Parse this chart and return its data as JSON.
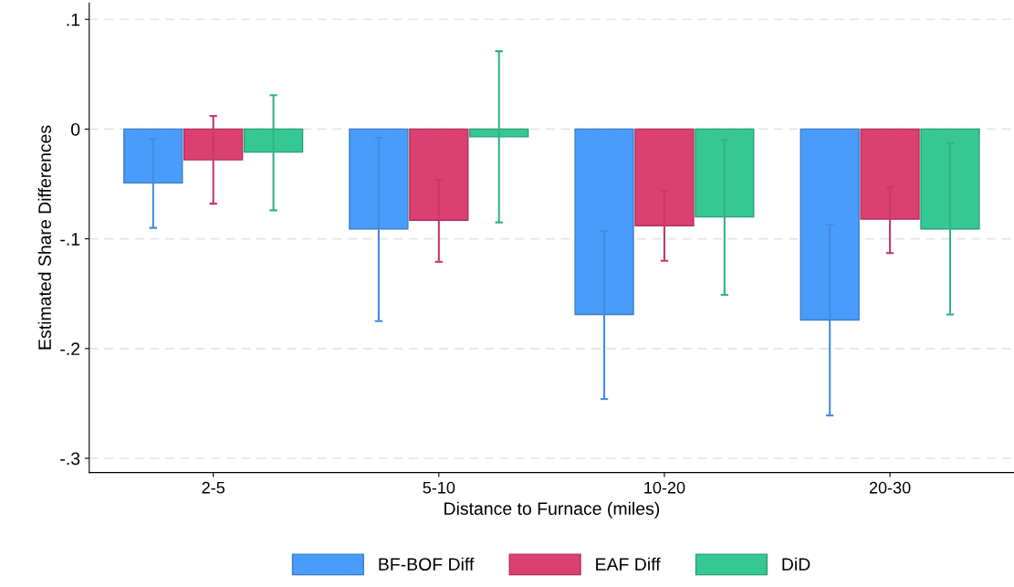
{
  "chart_data": {
    "type": "bar",
    "xlabel": "Distance to Furnace (miles)",
    "ylabel": "Estimated Share Differences",
    "categories": [
      "2-5",
      "5-10",
      "10-20",
      "20-30"
    ],
    "series": [
      {
        "name": "BF-BOF Diff",
        "color": "#4a9cfa",
        "values": [
          -0.049,
          -0.091,
          -0.169,
          -0.174
        ],
        "errors": [
          [
            -0.09,
            -0.009
          ],
          [
            -0.175,
            -0.008
          ],
          [
            -0.246,
            -0.093
          ],
          [
            -0.261,
            -0.087
          ]
        ]
      },
      {
        "name": "EAF Diff",
        "color": "#dc3f71",
        "values": [
          -0.028,
          -0.083,
          -0.088,
          -0.082
        ],
        "errors": [
          [
            -0.068,
            0.012
          ],
          [
            -0.121,
            -0.046
          ],
          [
            -0.12,
            -0.056
          ],
          [
            -0.113,
            -0.053
          ]
        ]
      },
      {
        "name": "DiD",
        "color": "#35c894",
        "values": [
          -0.021,
          -0.007,
          -0.08,
          -0.091
        ],
        "errors": [
          [
            -0.074,
            0.031
          ],
          [
            -0.085,
            0.071
          ],
          [
            -0.151,
            -0.01
          ],
          [
            -0.169,
            -0.013
          ]
        ]
      }
    ],
    "ylim": [
      -0.313,
      0.115
    ],
    "yticks": [
      {
        "value": 0.1,
        "label": ".1"
      },
      0,
      {
        "value": -0.1,
        "label": "-.1"
      },
      {
        "value": -0.2,
        "label": "-.2"
      },
      {
        "value": -0.3,
        "label": "-.3"
      }
    ],
    "grid": "y",
    "legend": "bottom"
  }
}
